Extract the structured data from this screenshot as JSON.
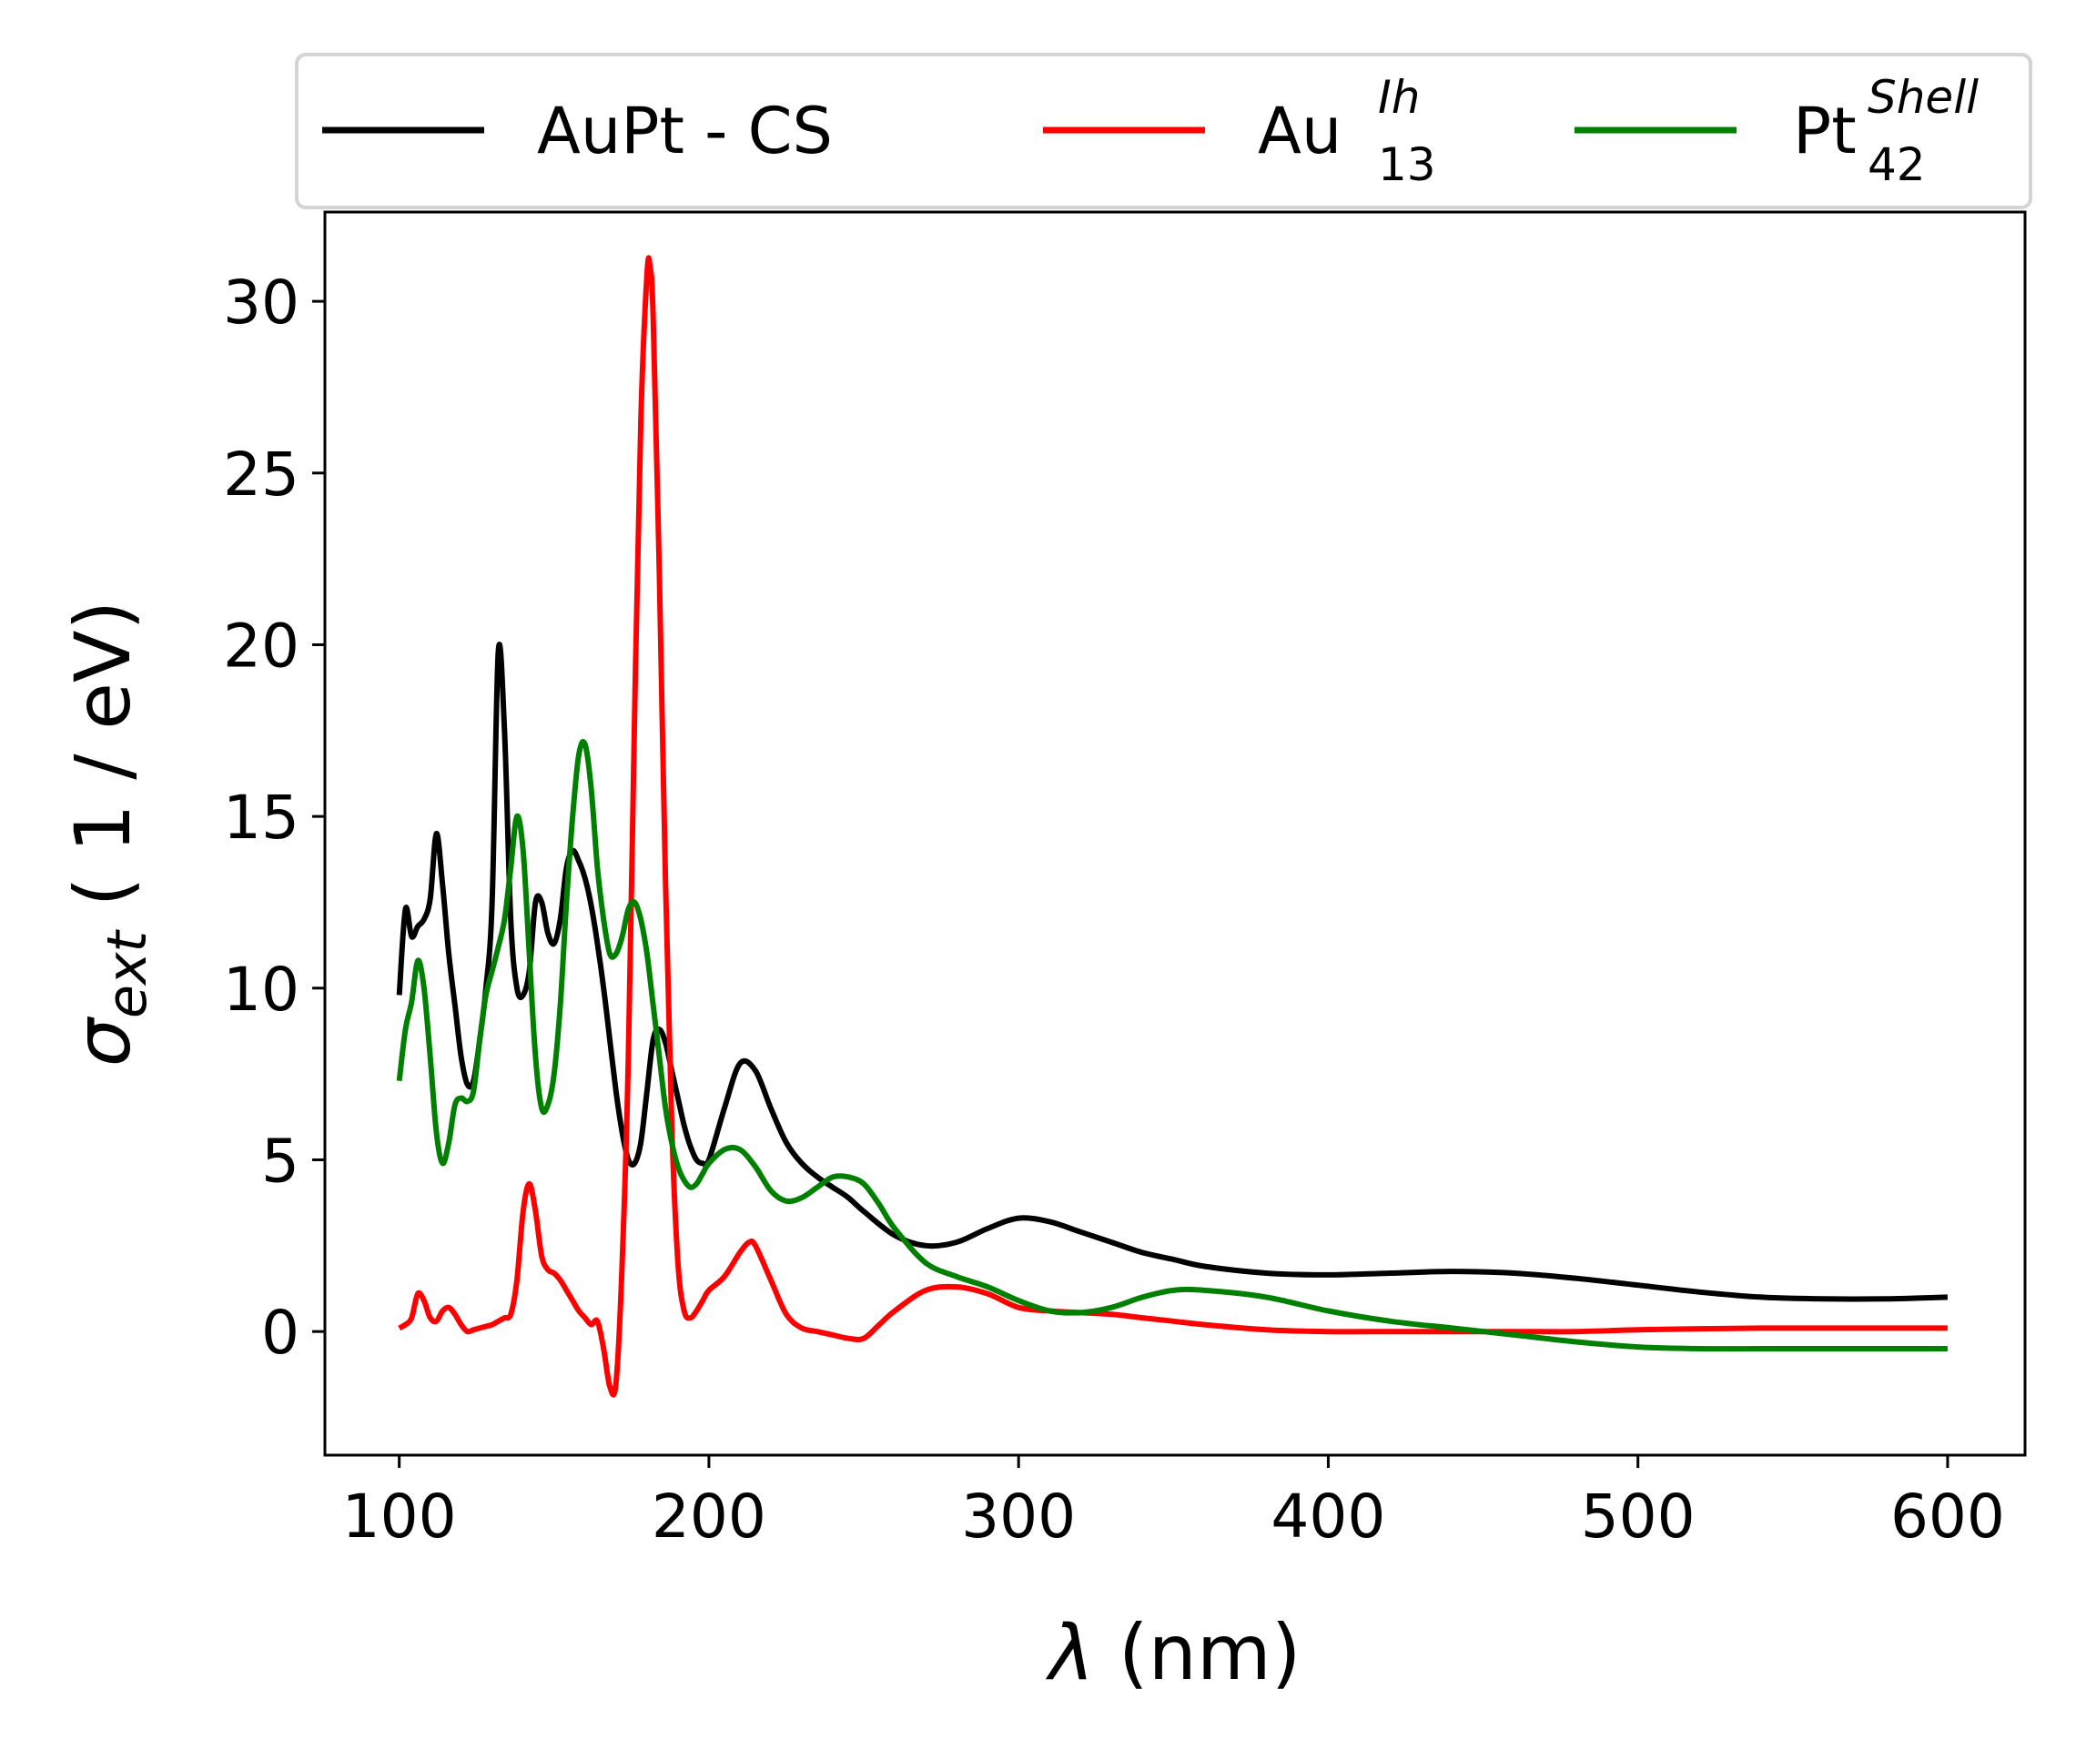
{
  "chart_data": {
    "type": "line",
    "xlabel": {
      "symbol": "λ",
      "rest": " (nm)"
    },
    "ylabel": {
      "symbol": "σ",
      "sub": "ext",
      "rest": " ( 1 / eV)"
    },
    "xlim": [
      76,
      625
    ],
    "ylim": [
      -3.6,
      32.6
    ],
    "xticks": [
      100,
      200,
      300,
      400,
      500,
      600
    ],
    "yticks": [
      0,
      5,
      10,
      15,
      20,
      25,
      30
    ],
    "grid": false,
    "legend": {
      "placement": "top, outside plot",
      "ncol": 3
    },
    "series": [
      {
        "name": "AuPt - CS",
        "label": {
          "base": "AuPt - CS",
          "sub": "",
          "sup": ""
        },
        "color": "#000000",
        "x": [
          100,
          102,
          104,
          106,
          108,
          110,
          112,
          114,
          116,
          118,
          120,
          122,
          124,
          126,
          128,
          130,
          132,
          134,
          136,
          138,
          140,
          142,
          144,
          146,
          148,
          150,
          152,
          154,
          156,
          158,
          160,
          162,
          164,
          166,
          168,
          170,
          172,
          174,
          176,
          178,
          180,
          182,
          184,
          186,
          188,
          190,
          192,
          194,
          196,
          198,
          200,
          205,
          210,
          215,
          220,
          225,
          230,
          235,
          240,
          245,
          250,
          260,
          270,
          280,
          290,
          300,
          310,
          320,
          330,
          340,
          350,
          360,
          380,
          400,
          420,
          440,
          460,
          480,
          500,
          520,
          540,
          560,
          580,
          600
        ],
        "y": [
          9.8,
          12.3,
          11.5,
          11.8,
          12.0,
          12.6,
          14.5,
          13.0,
          11.0,
          9.5,
          8.0,
          7.2,
          7.3,
          8.5,
          10.0,
          12.5,
          19.8,
          17.5,
          12.0,
          10.0,
          9.8,
          10.5,
          12.5,
          12.5,
          11.6,
          11.3,
          12.0,
          13.5,
          14.0,
          13.7,
          13.2,
          12.4,
          11.3,
          10.0,
          8.5,
          7.0,
          5.8,
          5.0,
          4.9,
          5.5,
          7.0,
          8.5,
          8.8,
          8.4,
          7.6,
          6.8,
          6.0,
          5.4,
          5.0,
          4.9,
          5.0,
          6.5,
          7.8,
          7.6,
          6.5,
          5.5,
          4.9,
          4.5,
          4.2,
          3.9,
          3.5,
          2.8,
          2.5,
          2.6,
          3.0,
          3.3,
          3.2,
          2.9,
          2.6,
          2.3,
          2.1,
          1.9,
          1.7,
          1.65,
          1.7,
          1.75,
          1.7,
          1.55,
          1.35,
          1.15,
          1.0,
          0.95,
          0.95,
          1.0
        ]
      },
      {
        "name": "Au13 Ih",
        "label": {
          "base": "Au",
          "sub": "13",
          "sup": "Ih"
        },
        "color": "#ff0000",
        "x": [
          100,
          102,
          104,
          106,
          108,
          110,
          112,
          114,
          116,
          118,
          120,
          122,
          124,
          126,
          128,
          130,
          132,
          134,
          136,
          138,
          140,
          142,
          144,
          146,
          148,
          150,
          152,
          154,
          156,
          158,
          160,
          162,
          164,
          166,
          168,
          170,
          172,
          174,
          176,
          178,
          180,
          181,
          182,
          184,
          186,
          188,
          190,
          192,
          194,
          196,
          198,
          200,
          205,
          210,
          213,
          215,
          220,
          225,
          230,
          235,
          240,
          245,
          250,
          255,
          260,
          270,
          280,
          290,
          300,
          310,
          320,
          330,
          340,
          350,
          360,
          380,
          400,
          420,
          440,
          460,
          480,
          500,
          520,
          540,
          560,
          580,
          600
        ],
        "y": [
          0.1,
          0.2,
          0.4,
          1.1,
          0.9,
          0.4,
          0.3,
          0.6,
          0.7,
          0.5,
          0.2,
          0.0,
          0.05,
          0.1,
          0.15,
          0.2,
          0.3,
          0.4,
          0.5,
          1.5,
          3.5,
          4.3,
          3.5,
          2.2,
          1.8,
          1.7,
          1.5,
          1.2,
          0.9,
          0.6,
          0.4,
          0.2,
          0.3,
          -0.5,
          -1.6,
          -1.5,
          2.0,
          8.0,
          18.0,
          26.5,
          30.8,
          31.0,
          29.5,
          22.0,
          13.0,
          6.0,
          2.0,
          0.6,
          0.4,
          0.6,
          0.9,
          1.2,
          1.6,
          2.3,
          2.6,
          2.5,
          1.5,
          0.5,
          0.1,
          0.0,
          -0.1,
          -0.2,
          -0.2,
          0.2,
          0.6,
          1.2,
          1.3,
          1.1,
          0.7,
          0.6,
          0.55,
          0.5,
          0.4,
          0.3,
          0.2,
          0.05,
          0.0,
          0.0,
          0.0,
          0.0,
          0.0,
          0.05,
          0.08,
          0.1,
          0.1,
          0.1,
          0.1
        ]
      },
      {
        "name": "Pt42 Shell",
        "label": {
          "base": "Pt",
          "sub": "42",
          "sup": "Shell"
        },
        "color": "#008000",
        "x": [
          100,
          102,
          104,
          106,
          108,
          110,
          112,
          114,
          116,
          118,
          120,
          122,
          124,
          126,
          128,
          130,
          132,
          134,
          136,
          138,
          140,
          142,
          144,
          146,
          148,
          150,
          152,
          154,
          156,
          158,
          160,
          162,
          164,
          166,
          168,
          170,
          172,
          174,
          176,
          178,
          180,
          182,
          184,
          186,
          188,
          190,
          192,
          194,
          196,
          198,
          200,
          205,
          210,
          215,
          220,
          225,
          230,
          235,
          240,
          245,
          250,
          255,
          260,
          270,
          280,
          290,
          300,
          310,
          320,
          330,
          340,
          350,
          360,
          380,
          400,
          420,
          440,
          460,
          480,
          500,
          520,
          540,
          560,
          580,
          600
        ],
        "y": [
          7.3,
          8.8,
          9.6,
          10.8,
          10.0,
          8.0,
          5.8,
          4.9,
          5.5,
          6.6,
          6.8,
          6.7,
          7.0,
          8.5,
          9.8,
          10.5,
          11.2,
          12.0,
          13.5,
          15.0,
          14.0,
          11.0,
          8.0,
          6.5,
          6.6,
          7.5,
          9.5,
          12.5,
          15.0,
          16.8,
          17.1,
          15.8,
          13.5,
          12.0,
          11.0,
          11.0,
          11.5,
          12.3,
          12.5,
          12.0,
          11.0,
          9.5,
          8.0,
          6.5,
          5.5,
          4.8,
          4.4,
          4.2,
          4.3,
          4.6,
          4.9,
          5.3,
          5.3,
          4.8,
          4.1,
          3.8,
          3.9,
          4.2,
          4.5,
          4.5,
          4.3,
          3.7,
          3.0,
          2.0,
          1.6,
          1.3,
          0.9,
          0.6,
          0.55,
          0.7,
          1.0,
          1.2,
          1.2,
          1.0,
          0.6,
          0.3,
          0.1,
          -0.1,
          -0.3,
          -0.45,
          -0.5,
          -0.5,
          -0.5,
          -0.5,
          -0.5
        ]
      }
    ]
  }
}
